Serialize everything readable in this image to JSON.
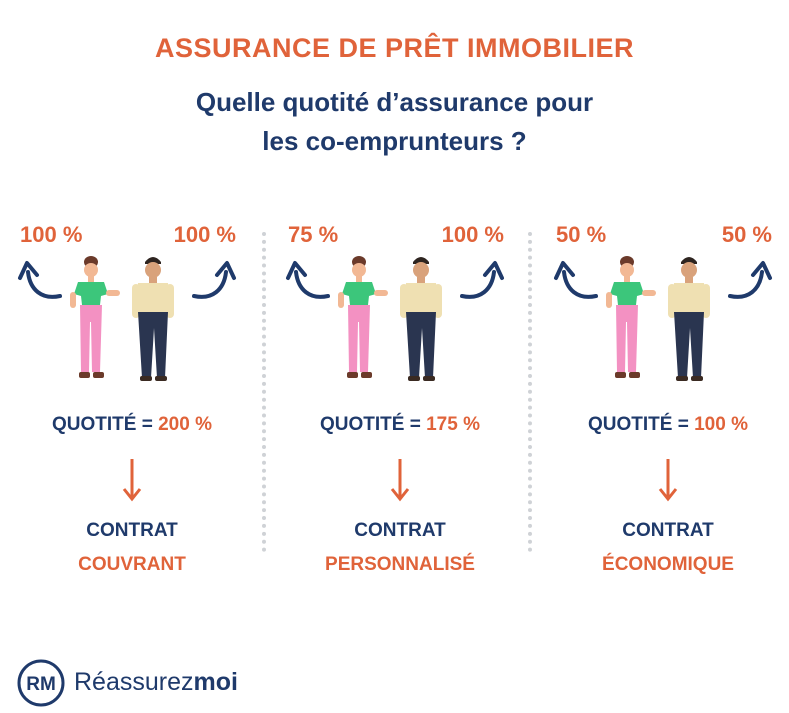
{
  "header": {
    "title": "ASSURANCE DE PRÊT IMMOBILIER",
    "subtitle_line1": "Quelle quotité d’assurance pour",
    "subtitle_line2": "les co-emprunteurs ?"
  },
  "scenarios": [
    {
      "left_pct": "100 %",
      "right_pct": "100 %",
      "quotite_label": "QUOTITÉ =",
      "quotite_value": "200 %",
      "contract_label": "CONTRAT",
      "contract_type": "COUVRANT"
    },
    {
      "left_pct": "75 %",
      "right_pct": "100 %",
      "quotite_label": "QUOTITÉ =",
      "quotite_value": "175 %",
      "contract_label": "CONTRAT",
      "contract_type": "PERSONNALISÉ"
    },
    {
      "left_pct": "50 %",
      "right_pct": "50 %",
      "quotite_label": "QUOTITÉ =",
      "quotite_value": "100 %",
      "contract_label": "CONTRAT",
      "contract_type": "ÉCONOMIQUE"
    }
  ],
  "brand": {
    "logo_letters": "RM",
    "name_regular": "Réassurez",
    "name_bold": "moi"
  },
  "colors": {
    "accent": "#e0633a",
    "navy": "#1f3a6b",
    "separator": "#cfd2d6",
    "woman_top": "#3cc67b",
    "woman_pants": "#f391c2",
    "man_shirt": "#efe0b2",
    "man_pants": "#2a3550"
  }
}
